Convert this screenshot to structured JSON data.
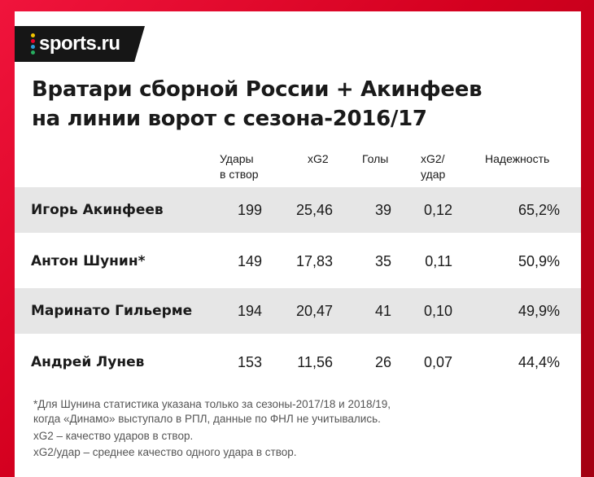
{
  "brand": {
    "name": "sports.ru",
    "dot_colors": [
      "#f2c500",
      "#e8002a",
      "#2d9cdb",
      "#27ae60"
    ]
  },
  "title": {
    "line1": "Вратари сборной России + Акинфеев",
    "line2": "на линии ворот с сезона-2016/17"
  },
  "table": {
    "headers": {
      "shots_line1": "Удары",
      "shots_line2": "в створ",
      "xg2": "xG2",
      "goals": "Голы",
      "xg_per_line1": "xG2/",
      "xg_per_line2": "удар",
      "reliability": "Надежность"
    },
    "rows": [
      {
        "name": "Игорь Акинфеев",
        "shots": "199",
        "xg2": "25,46",
        "goals": "39",
        "xg_per": "0,12",
        "reliability": "65,2%"
      },
      {
        "name": "Антон Шунин*",
        "shots": "149",
        "xg2": "17,83",
        "goals": "35",
        "xg_per": "0,11",
        "reliability": "50,9%"
      },
      {
        "name": "Маринато Гильерме",
        "shots": "194",
        "xg2": "20,47",
        "goals": "41",
        "xg_per": "0,10",
        "reliability": "49,9%"
      },
      {
        "name": "Андрей Лунев",
        "shots": "153",
        "xg2": "11,56",
        "goals": "26",
        "xg_per": "0,07",
        "reliability": "44,4%"
      }
    ]
  },
  "footnotes": {
    "note1_line1": "*Для Шунина статистика указана только за сезоны-2017/18 и 2018/19,",
    "note1_line2": "когда «Динамо» выступало в РПЛ, данные по ФНЛ не учитывались.",
    "note2": "xG2 – качество ударов в створ.",
    "note3": "xG2/удар – среднее качество одного удара в створ."
  },
  "colors": {
    "background_red": "#e0002a",
    "row_shade": "#e6e6e6",
    "logo_bg": "#161616"
  }
}
